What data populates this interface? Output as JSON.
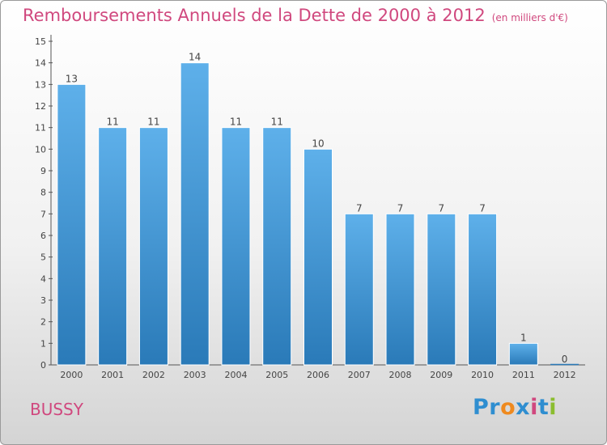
{
  "title": "Remboursements Annuels de la Dette de 2000 à 2012",
  "unit_note": "(en milliers d'€)",
  "commune": "BUSSY",
  "logo": {
    "p1": "Pr",
    "p2": "o",
    "p3": "x",
    "p4": "i",
    "p5": "t",
    "p6": "i"
  },
  "colors": {
    "title": "#d0487e",
    "bar_top": "#5eb0ea",
    "bar_bottom": "#2a7ab8"
  },
  "chart_data": {
    "type": "bar",
    "title": "Remboursements Annuels de la Dette de 2000 à 2012",
    "categories": [
      "2000",
      "2001",
      "2002",
      "2003",
      "2004",
      "2005",
      "2006",
      "2007",
      "2008",
      "2009",
      "2010",
      "2011",
      "2012"
    ],
    "values": [
      13,
      11,
      11,
      14,
      11,
      11,
      10,
      7,
      7,
      7,
      7,
      1,
      0
    ],
    "xlabel": "",
    "ylabel": "",
    "ylim": [
      0,
      15
    ],
    "yticks": [
      0,
      1,
      2,
      3,
      4,
      5,
      6,
      7,
      8,
      9,
      10,
      11,
      12,
      13,
      14,
      15
    ],
    "grid": false
  }
}
